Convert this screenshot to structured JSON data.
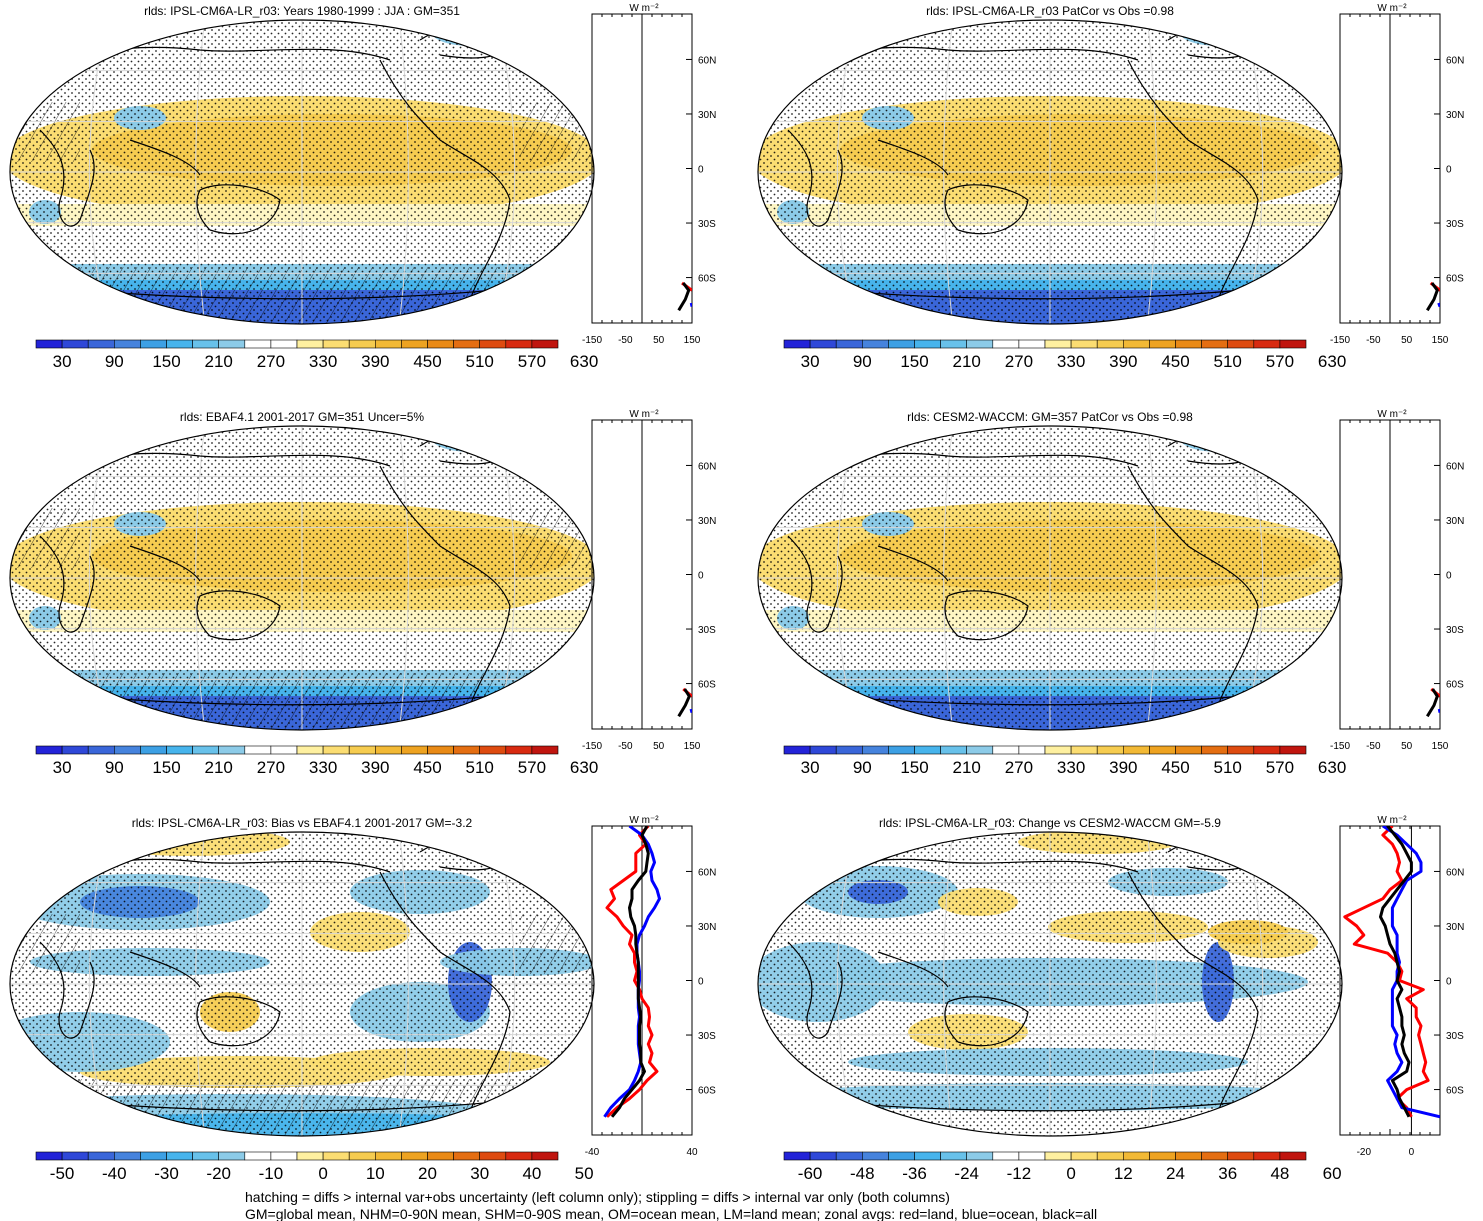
{
  "footer": {
    "line1": "hatching = diffs > internal var+obs uncertainty (left column only); stippling = diffs > internal var only (both columns)",
    "line2": "GM=global mean, NHM=0-90N mean, SHM=0-90S mean, OM=ocean mean, LM=land mean; zonal avgs: red=land, blue=ocean, black=all"
  },
  "colors": {
    "abs_scale": [
      "#2323d8",
      "#2f48d8",
      "#3a66d9",
      "#4683dd",
      "#3da0e4",
      "#47b4ec",
      "#68c1ea",
      "#8ccbe8",
      "#ffffff",
      "#ffffff",
      "#fef0a0",
      "#fbdd72",
      "#f6cc50",
      "#f2b935",
      "#eea321",
      "#e98a16",
      "#e46e12",
      "#de4b10",
      "#d82a10",
      "#c0150f"
    ],
    "diff_scale": [
      "#2323d8",
      "#2f48d8",
      "#3a66d9",
      "#4683dd",
      "#3da0e4",
      "#47b4ec",
      "#68c1ea",
      "#8ccbe8",
      "#ffffff",
      "#ffffff",
      "#fef0a0",
      "#fbdd72",
      "#f6cc50",
      "#f2b935",
      "#eea321",
      "#e98a16",
      "#e46e12",
      "#de4b10",
      "#d82a10",
      "#c0150f"
    ],
    "land_line": "#ff0000",
    "ocean_line": "#0000ff",
    "all_line": "#000000"
  },
  "chart_data": [
    {
      "id": "p1",
      "type": "heatmap",
      "title": "rlds: IPSL-CM6A-LR_r03: Years 1980-1999 : JJA : GM=351",
      "colorbar_labels": [
        "30",
        "90",
        "150",
        "210",
        "270",
        "330",
        "390",
        "450",
        "510",
        "570",
        "630"
      ],
      "zonal_axis": {
        "unit": "W m⁻²",
        "x_ticks": [
          "-150",
          "-50",
          "50",
          "150"
        ],
        "xlim": [
          -150,
          150
        ],
        "lat_labels": [
          "60N",
          "30N",
          "0",
          "30S",
          "60S"
        ]
      },
      "zonal": {
        "land": [
          [
            -63,
            120
          ],
          [
            -67,
            150
          ]
        ],
        "ocean": [
          [
            -74,
            148
          ],
          [
            -76,
            150
          ]
        ],
        "all": [
          [
            -63,
            124
          ],
          [
            -67,
            140
          ],
          [
            -72,
            130
          ],
          [
            -78,
            110
          ]
        ]
      }
    },
    {
      "id": "p2",
      "type": "heatmap",
      "title": "rlds: IPSL-CM6A-LR_r03 PatCor vs Obs =0.98",
      "colorbar_labels": [
        "30",
        "90",
        "150",
        "210",
        "270",
        "330",
        "390",
        "450",
        "510",
        "570",
        "630"
      ],
      "zonal_axis": {
        "unit": "W m⁻²",
        "x_ticks": [
          "-150",
          "-50",
          "50",
          "150"
        ],
        "xlim": [
          -150,
          150
        ],
        "lat_labels": [
          "60N",
          "30N",
          "0",
          "30S",
          "60S"
        ]
      },
      "zonal": {
        "land": [
          [
            -63,
            122
          ],
          [
            -67,
            150
          ]
        ],
        "ocean": [
          [
            -74,
            146
          ],
          [
            -76,
            150
          ]
        ],
        "all": [
          [
            -63,
            126
          ],
          [
            -67,
            142
          ],
          [
            -72,
            132
          ],
          [
            -78,
            112
          ]
        ]
      }
    },
    {
      "id": "p3",
      "type": "heatmap",
      "title": "rlds: EBAF4.1 2001-2017 GM=351 Uncer=5%",
      "colorbar_labels": [
        "30",
        "90",
        "150",
        "210",
        "270",
        "330",
        "390",
        "450",
        "510",
        "570",
        "630"
      ],
      "zonal_axis": {
        "unit": "W m⁻²",
        "x_ticks": [
          "-150",
          "-50",
          "50",
          "150"
        ],
        "xlim": [
          -150,
          150
        ],
        "lat_labels": [
          "60N",
          "30N",
          "0",
          "30S",
          "60S"
        ]
      },
      "zonal": {
        "land": [
          [
            -63,
            124
          ],
          [
            -67,
            150
          ]
        ],
        "ocean": [
          [
            -74,
            147
          ],
          [
            -76,
            150
          ]
        ],
        "all": [
          [
            -63,
            128
          ],
          [
            -67,
            142
          ],
          [
            -72,
            130
          ],
          [
            -78,
            110
          ]
        ]
      }
    },
    {
      "id": "p4",
      "type": "heatmap",
      "title": "rlds: CESM2-WACCM: GM=357 PatCor vs Obs =0.98",
      "colorbar_labels": [
        "30",
        "90",
        "150",
        "210",
        "270",
        "330",
        "390",
        "450",
        "510",
        "570",
        "630"
      ],
      "zonal_axis": {
        "unit": "W m⁻²",
        "x_ticks": [
          "-150",
          "-50",
          "50",
          "150"
        ],
        "xlim": [
          -150,
          150
        ],
        "lat_labels": [
          "60N",
          "30N",
          "0",
          "30S",
          "60S"
        ]
      },
      "zonal": {
        "land": [
          [
            -63,
            124
          ],
          [
            -67,
            150
          ]
        ],
        "ocean": [
          [
            -74,
            148
          ],
          [
            -76,
            150
          ]
        ],
        "all": [
          [
            -63,
            128
          ],
          [
            -67,
            142
          ],
          [
            -72,
            132
          ],
          [
            -78,
            112
          ]
        ]
      }
    },
    {
      "id": "p5",
      "type": "heatmap",
      "title": "rlds: IPSL-CM6A-LR_r03: Bias vs EBAF4.1 2001-2017 GM=-3.2",
      "colorbar_labels": [
        "-50",
        "-40",
        "-30",
        "-20",
        "-10",
        "0",
        "10",
        "20",
        "30",
        "40",
        "50"
      ],
      "zonal_axis": {
        "unit": "W m⁻²",
        "x_ticks": [
          "-40",
          "40"
        ],
        "xlim": [
          -40,
          40
        ],
        "lat_labels": [
          "60N",
          "30N",
          "0",
          "30S",
          "60S"
        ]
      },
      "zonal": {
        "land": [
          [
            85,
            5
          ],
          [
            80,
            -2
          ],
          [
            75,
            3
          ],
          [
            70,
            -5
          ],
          [
            65,
            -5
          ],
          [
            60,
            -5
          ],
          [
            55,
            -15
          ],
          [
            50,
            -25
          ],
          [
            45,
            -22
          ],
          [
            40,
            -28
          ],
          [
            35,
            -20
          ],
          [
            30,
            -15
          ],
          [
            25,
            -8
          ],
          [
            20,
            -10
          ],
          [
            15,
            -6
          ],
          [
            10,
            -6
          ],
          [
            5,
            -4
          ],
          [
            0,
            -6
          ],
          [
            -5,
            -2
          ],
          [
            -10,
            0
          ],
          [
            -15,
            5
          ],
          [
            -20,
            6
          ],
          [
            -25,
            5
          ],
          [
            -30,
            8
          ],
          [
            -35,
            5
          ],
          [
            -40,
            8
          ],
          [
            -45,
            6
          ],
          [
            -50,
            12
          ],
          [
            -55,
            4
          ],
          [
            -60,
            -2
          ],
          [
            -65,
            -10
          ],
          [
            -70,
            -20
          ],
          [
            -75,
            -28
          ]
        ],
        "ocean": [
          [
            85,
            -10
          ],
          [
            80,
            0
          ],
          [
            75,
            5
          ],
          [
            70,
            8
          ],
          [
            65,
            10
          ],
          [
            60,
            7
          ],
          [
            55,
            8
          ],
          [
            50,
            12
          ],
          [
            45,
            14
          ],
          [
            40,
            10
          ],
          [
            35,
            5
          ],
          [
            30,
            2
          ],
          [
            25,
            -2
          ],
          [
            20,
            -4
          ],
          [
            15,
            -4
          ],
          [
            10,
            -3
          ],
          [
            5,
            -2
          ],
          [
            0,
            -2
          ],
          [
            -5,
            -3
          ],
          [
            -10,
            -3
          ],
          [
            -15,
            -3
          ],
          [
            -20,
            -2
          ],
          [
            -25,
            -3
          ],
          [
            -30,
            -3
          ],
          [
            -35,
            -3
          ],
          [
            -40,
            -2
          ],
          [
            -45,
            -1
          ],
          [
            -50,
            -3
          ],
          [
            -55,
            -6
          ],
          [
            -60,
            -10
          ],
          [
            -65,
            -18
          ],
          [
            -70,
            -25
          ],
          [
            -75,
            -30
          ]
        ],
        "all": [
          [
            85,
            4
          ],
          [
            80,
            0
          ],
          [
            75,
            3
          ],
          [
            70,
            5
          ],
          [
            65,
            4
          ],
          [
            60,
            3
          ],
          [
            55,
            -3
          ],
          [
            50,
            -8
          ],
          [
            45,
            -8
          ],
          [
            40,
            -10
          ],
          [
            35,
            -9
          ],
          [
            30,
            -6
          ],
          [
            25,
            -5
          ],
          [
            20,
            -5
          ],
          [
            15,
            -4
          ],
          [
            10,
            -3
          ],
          [
            5,
            -3
          ],
          [
            0,
            -3
          ],
          [
            -5,
            -3
          ],
          [
            -10,
            -3
          ],
          [
            -15,
            -2
          ],
          [
            -20,
            -1
          ],
          [
            -25,
            -2
          ],
          [
            -30,
            -2
          ],
          [
            -35,
            -2
          ],
          [
            -40,
            -1
          ],
          [
            -45,
            -1
          ],
          [
            -50,
            2
          ],
          [
            -55,
            -2
          ],
          [
            -60,
            -8
          ],
          [
            -65,
            -14
          ],
          [
            -70,
            -18
          ],
          [
            -75,
            -24
          ]
        ]
      }
    },
    {
      "id": "p6",
      "type": "heatmap",
      "title": "rlds: IPSL-CM6A-LR_r03: Change vs CESM2-WACCM GM=-5.9",
      "colorbar_labels": [
        "-60",
        "-48",
        "-36",
        "-24",
        "-12",
        "0",
        "12",
        "24",
        "36",
        "48",
        "60"
      ],
      "zonal_axis": {
        "unit": "W m⁻²",
        "x_ticks": [
          "-20",
          "0"
        ],
        "xlim": [
          -30,
          12
        ],
        "lat_labels": [
          "60N",
          "30N",
          "0",
          "30S",
          "60S"
        ]
      },
      "zonal": {
        "land": [
          [
            85,
            -8
          ],
          [
            80,
            -12
          ],
          [
            75,
            -8
          ],
          [
            70,
            -6
          ],
          [
            65,
            -5
          ],
          [
            60,
            -6
          ],
          [
            55,
            -4
          ],
          [
            50,
            -9
          ],
          [
            45,
            -12
          ],
          [
            40,
            -20
          ],
          [
            35,
            -28
          ],
          [
            30,
            -23
          ],
          [
            25,
            -20
          ],
          [
            20,
            -24
          ],
          [
            15,
            -10
          ],
          [
            10,
            -6
          ],
          [
            5,
            -4
          ],
          [
            0,
            -5
          ],
          [
            -5,
            5
          ],
          [
            -10,
            -2
          ],
          [
            -15,
            2
          ],
          [
            -20,
            2
          ],
          [
            -25,
            4
          ],
          [
            -30,
            3
          ],
          [
            -35,
            4
          ],
          [
            -40,
            5
          ],
          [
            -45,
            6
          ],
          [
            -50,
            5
          ],
          [
            -55,
            7
          ],
          [
            -60,
            -2
          ],
          [
            -65,
            -6
          ],
          [
            -70,
            -2
          ],
          [
            -75,
            0
          ]
        ],
        "ocean": [
          [
            85,
            -12
          ],
          [
            80,
            -6
          ],
          [
            75,
            -2
          ],
          [
            70,
            2
          ],
          [
            65,
            4
          ],
          [
            60,
            4
          ],
          [
            55,
            -2
          ],
          [
            50,
            -4
          ],
          [
            45,
            -6
          ],
          [
            40,
            -8
          ],
          [
            35,
            -8
          ],
          [
            30,
            -8
          ],
          [
            25,
            -6
          ],
          [
            20,
            -6
          ],
          [
            15,
            -6
          ],
          [
            10,
            -5
          ],
          [
            5,
            -6
          ],
          [
            0,
            -6
          ],
          [
            -5,
            -8
          ],
          [
            -10,
            -8
          ],
          [
            -15,
            -8
          ],
          [
            -20,
            -8
          ],
          [
            -25,
            -8
          ],
          [
            -30,
            -6
          ],
          [
            -35,
            -7
          ],
          [
            -40,
            -6
          ],
          [
            -45,
            -4
          ],
          [
            -50,
            -6
          ],
          [
            -55,
            -10
          ],
          [
            -60,
            -8
          ],
          [
            -65,
            -6
          ],
          [
            -70,
            -4
          ],
          [
            -75,
            12
          ]
        ],
        "all": [
          [
            85,
            -10
          ],
          [
            80,
            -7
          ],
          [
            75,
            -4
          ],
          [
            70,
            -2
          ],
          [
            65,
            0
          ],
          [
            60,
            0
          ],
          [
            55,
            -3
          ],
          [
            50,
            -6
          ],
          [
            45,
            -9
          ],
          [
            40,
            -12
          ],
          [
            35,
            -13
          ],
          [
            30,
            -11
          ],
          [
            25,
            -10
          ],
          [
            20,
            -9
          ],
          [
            15,
            -7
          ],
          [
            10,
            -6
          ],
          [
            5,
            -5
          ],
          [
            0,
            -6
          ],
          [
            -5,
            -4
          ],
          [
            -10,
            -6
          ],
          [
            -15,
            -5
          ],
          [
            -20,
            -4
          ],
          [
            -25,
            -4
          ],
          [
            -30,
            -3
          ],
          [
            -35,
            -4
          ],
          [
            -40,
            -3
          ],
          [
            -45,
            -1
          ],
          [
            -50,
            -2
          ],
          [
            -55,
            -8
          ],
          [
            -60,
            -6
          ],
          [
            -65,
            -5
          ],
          [
            -70,
            -3
          ],
          [
            -75,
            -1
          ]
        ]
      }
    }
  ]
}
